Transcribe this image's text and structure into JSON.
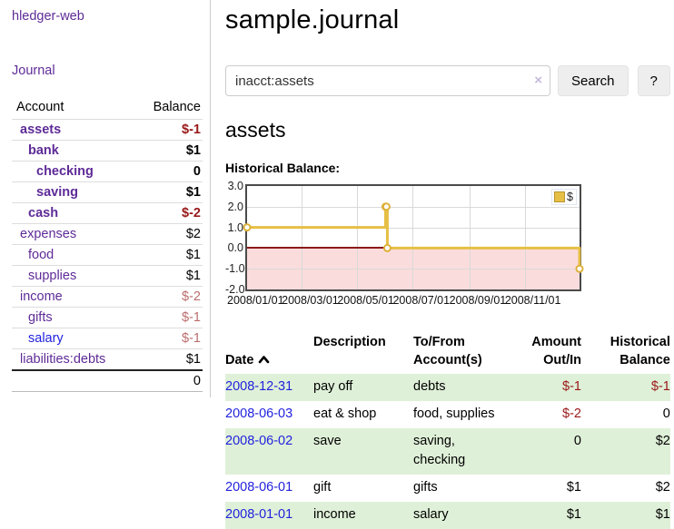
{
  "sidebar": {
    "brand": "hledger-web",
    "nav_journal": "Journal",
    "accounts_header": {
      "account": "Account",
      "balance": "Balance"
    },
    "accounts": [
      {
        "name": "assets",
        "depth": 1,
        "bold": true,
        "balance": "$-1",
        "neg": "strong",
        "link_color": "purple"
      },
      {
        "name": "bank",
        "depth": 2,
        "bold": true,
        "balance": "$1",
        "neg": null,
        "link_color": "purple"
      },
      {
        "name": "checking",
        "depth": 3,
        "bold": true,
        "balance": "0",
        "neg": null,
        "link_color": "purple"
      },
      {
        "name": "saving",
        "depth": 3,
        "bold": true,
        "balance": "$1",
        "neg": null,
        "link_color": "purple"
      },
      {
        "name": "cash",
        "depth": 2,
        "bold": true,
        "balance": "$-2",
        "neg": "strong",
        "link_color": "purple"
      },
      {
        "name": "expenses",
        "depth": 1,
        "bold": false,
        "balance": "$2",
        "neg": null,
        "link_color": "purple"
      },
      {
        "name": "food",
        "depth": 2,
        "bold": false,
        "balance": "$1",
        "neg": null,
        "link_color": "purple"
      },
      {
        "name": "supplies",
        "depth": 2,
        "bold": false,
        "balance": "$1",
        "neg": null,
        "link_color": "purple"
      },
      {
        "name": "income",
        "depth": 1,
        "bold": false,
        "balance": "$-2",
        "neg": "soft",
        "link_color": "purple"
      },
      {
        "name": "gifts",
        "depth": 2,
        "bold": false,
        "balance": "$-1",
        "neg": "soft",
        "link_color": "purple"
      },
      {
        "name": "salary",
        "depth": 2,
        "bold": false,
        "balance": "$-1",
        "neg": "soft",
        "link_color": "blue"
      },
      {
        "name": "liabilities:debts",
        "depth": 1,
        "bold": false,
        "balance": "$1",
        "neg": null,
        "link_color": "purple"
      }
    ],
    "total": "0"
  },
  "header": {
    "title": "sample.journal"
  },
  "search": {
    "query": "inacct:assets",
    "clear_icon": "×",
    "search_label": "Search",
    "help_label": "?"
  },
  "account_page": {
    "heading": "assets",
    "chart_title": "Historical Balance:"
  },
  "chart_data": {
    "type": "line",
    "step": true,
    "title": "Historical Balance:",
    "legend": "$",
    "legend_position": "top-right",
    "grid": true,
    "ylim": [
      -2,
      3
    ],
    "y_ticks": [
      "3.0",
      "2.0",
      "1.0",
      "0.0",
      "-1.0",
      "-2.0"
    ],
    "y_gridlines": [
      2,
      1,
      -1
    ],
    "x_ticks": [
      "2008/01/01",
      "2008/03/01",
      "2008/05/01",
      "2008/07/01",
      "2008/09/01",
      "2008/11/01"
    ],
    "x_tick_days": [
      0,
      60,
      121,
      182,
      244,
      305
    ],
    "x_range_days": 365,
    "series": [
      {
        "name": "$",
        "color": "#e6bf45",
        "marker_stroke": "#dcb23a",
        "points": [
          {
            "x": "2008-01-01",
            "day": 0,
            "y": 1
          },
          {
            "x": "2008-06-01",
            "day": 152,
            "y": 2
          },
          {
            "x": "2008-06-02",
            "day": 153,
            "y": 2
          },
          {
            "x": "2008-06-03",
            "day": 154,
            "y": 0
          },
          {
            "x": "2008-12-31",
            "day": 365,
            "y": -1
          }
        ]
      }
    ],
    "zero_line_color": "#8b1a1a",
    "negative_region_color": "#fbdcdc"
  },
  "register": {
    "columns": [
      "Date",
      "Description",
      "To/From\nAccount(s)",
      "Amount\nOut/In",
      "Historical\nBalance"
    ],
    "sort_column": "Date",
    "sort_direction": "ascending",
    "rows": [
      {
        "date": "2008-12-31",
        "description": "pay off",
        "accounts": "debts",
        "amount": "$-1",
        "balance": "$-1",
        "shade": true
      },
      {
        "date": "2008-06-03",
        "description": "eat & shop",
        "accounts": "food, supplies",
        "amount": "$-2",
        "balance": "0",
        "shade": false
      },
      {
        "date": "2008-06-02",
        "description": "save",
        "accounts": "saving,\nchecking",
        "amount": "0",
        "balance": "$2",
        "shade": true
      },
      {
        "date": "2008-06-01",
        "description": "gift",
        "accounts": "gifts",
        "amount": "$1",
        "balance": "$2",
        "shade": false
      },
      {
        "date": "2008-01-01",
        "description": "income",
        "accounts": "salary",
        "amount": "$1",
        "balance": "$1",
        "shade": true
      }
    ]
  },
  "colors": {
    "link_purple": "#5e2b97",
    "link_blue": "#2222dd",
    "negative": "#991717",
    "negative_soft": "#bb6d6d",
    "row_stripe_green": "#dff0d8",
    "series_gold": "#e6bf45",
    "chart_border": "#4a4a4a"
  }
}
